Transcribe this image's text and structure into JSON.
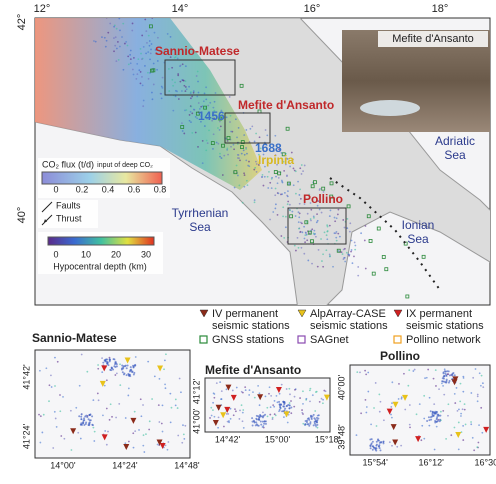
{
  "map": {
    "lon_labels": [
      "12°",
      "14°",
      "16°",
      "18°"
    ],
    "lat_labels": [
      "42°",
      "40°"
    ],
    "places": {
      "sannio": "Sannio-Matese",
      "mefite": "Mefite d'Ansanto",
      "y1456": "1456",
      "y1688": "1688",
      "irpinia": "Irpinia",
      "pollino": "Pollino",
      "adriatic": [
        "Adriatic",
        "Sea"
      ],
      "tyrrhenian": [
        "Tyrrhenian",
        "Sea"
      ],
      "ionian": [
        "Ionian",
        "Sea"
      ]
    },
    "photo_title": "Mefite d'Ansanto",
    "flux_legend": {
      "title": "CO₂ flux (t/d)",
      "note": "input of deep CO₂",
      "ticks": [
        "0",
        "0.2",
        "0.4",
        "0.6",
        "0.8"
      ]
    },
    "fault_legend": {
      "faults": "Faults",
      "thrust": "Thrust"
    },
    "depth_legend": {
      "ticks": [
        "0",
        "10",
        "20",
        "30"
      ],
      "title": "Hypocentral depth (km)"
    }
  },
  "stations": [
    [
      "IV permanent",
      "seismic stations"
    ],
    [
      "AlpArray-CASE",
      "seismic stations"
    ],
    [
      "IX permanent",
      "seismic stations"
    ],
    [
      "GNSS stations"
    ],
    [
      "SAGnet"
    ],
    [
      "Pollino network"
    ]
  ],
  "insets": [
    {
      "title": "Sannio-Matese",
      "yticks": [
        "41°42'",
        "41°24'"
      ],
      "xticks": [
        "14°00'",
        "14°24'",
        "14°48'"
      ]
    },
    {
      "title": "Mefite d'Ansanto",
      "yticks": [
        "41°12'",
        "41°00'"
      ],
      "xticks": [
        "14°42'",
        "15°00'",
        "15°18'"
      ]
    },
    {
      "title": "Pollino",
      "yticks": [
        "40°00'",
        "39°48'"
      ],
      "xticks": [
        "15°54'",
        "16°12'",
        "16°30'"
      ]
    }
  ]
}
